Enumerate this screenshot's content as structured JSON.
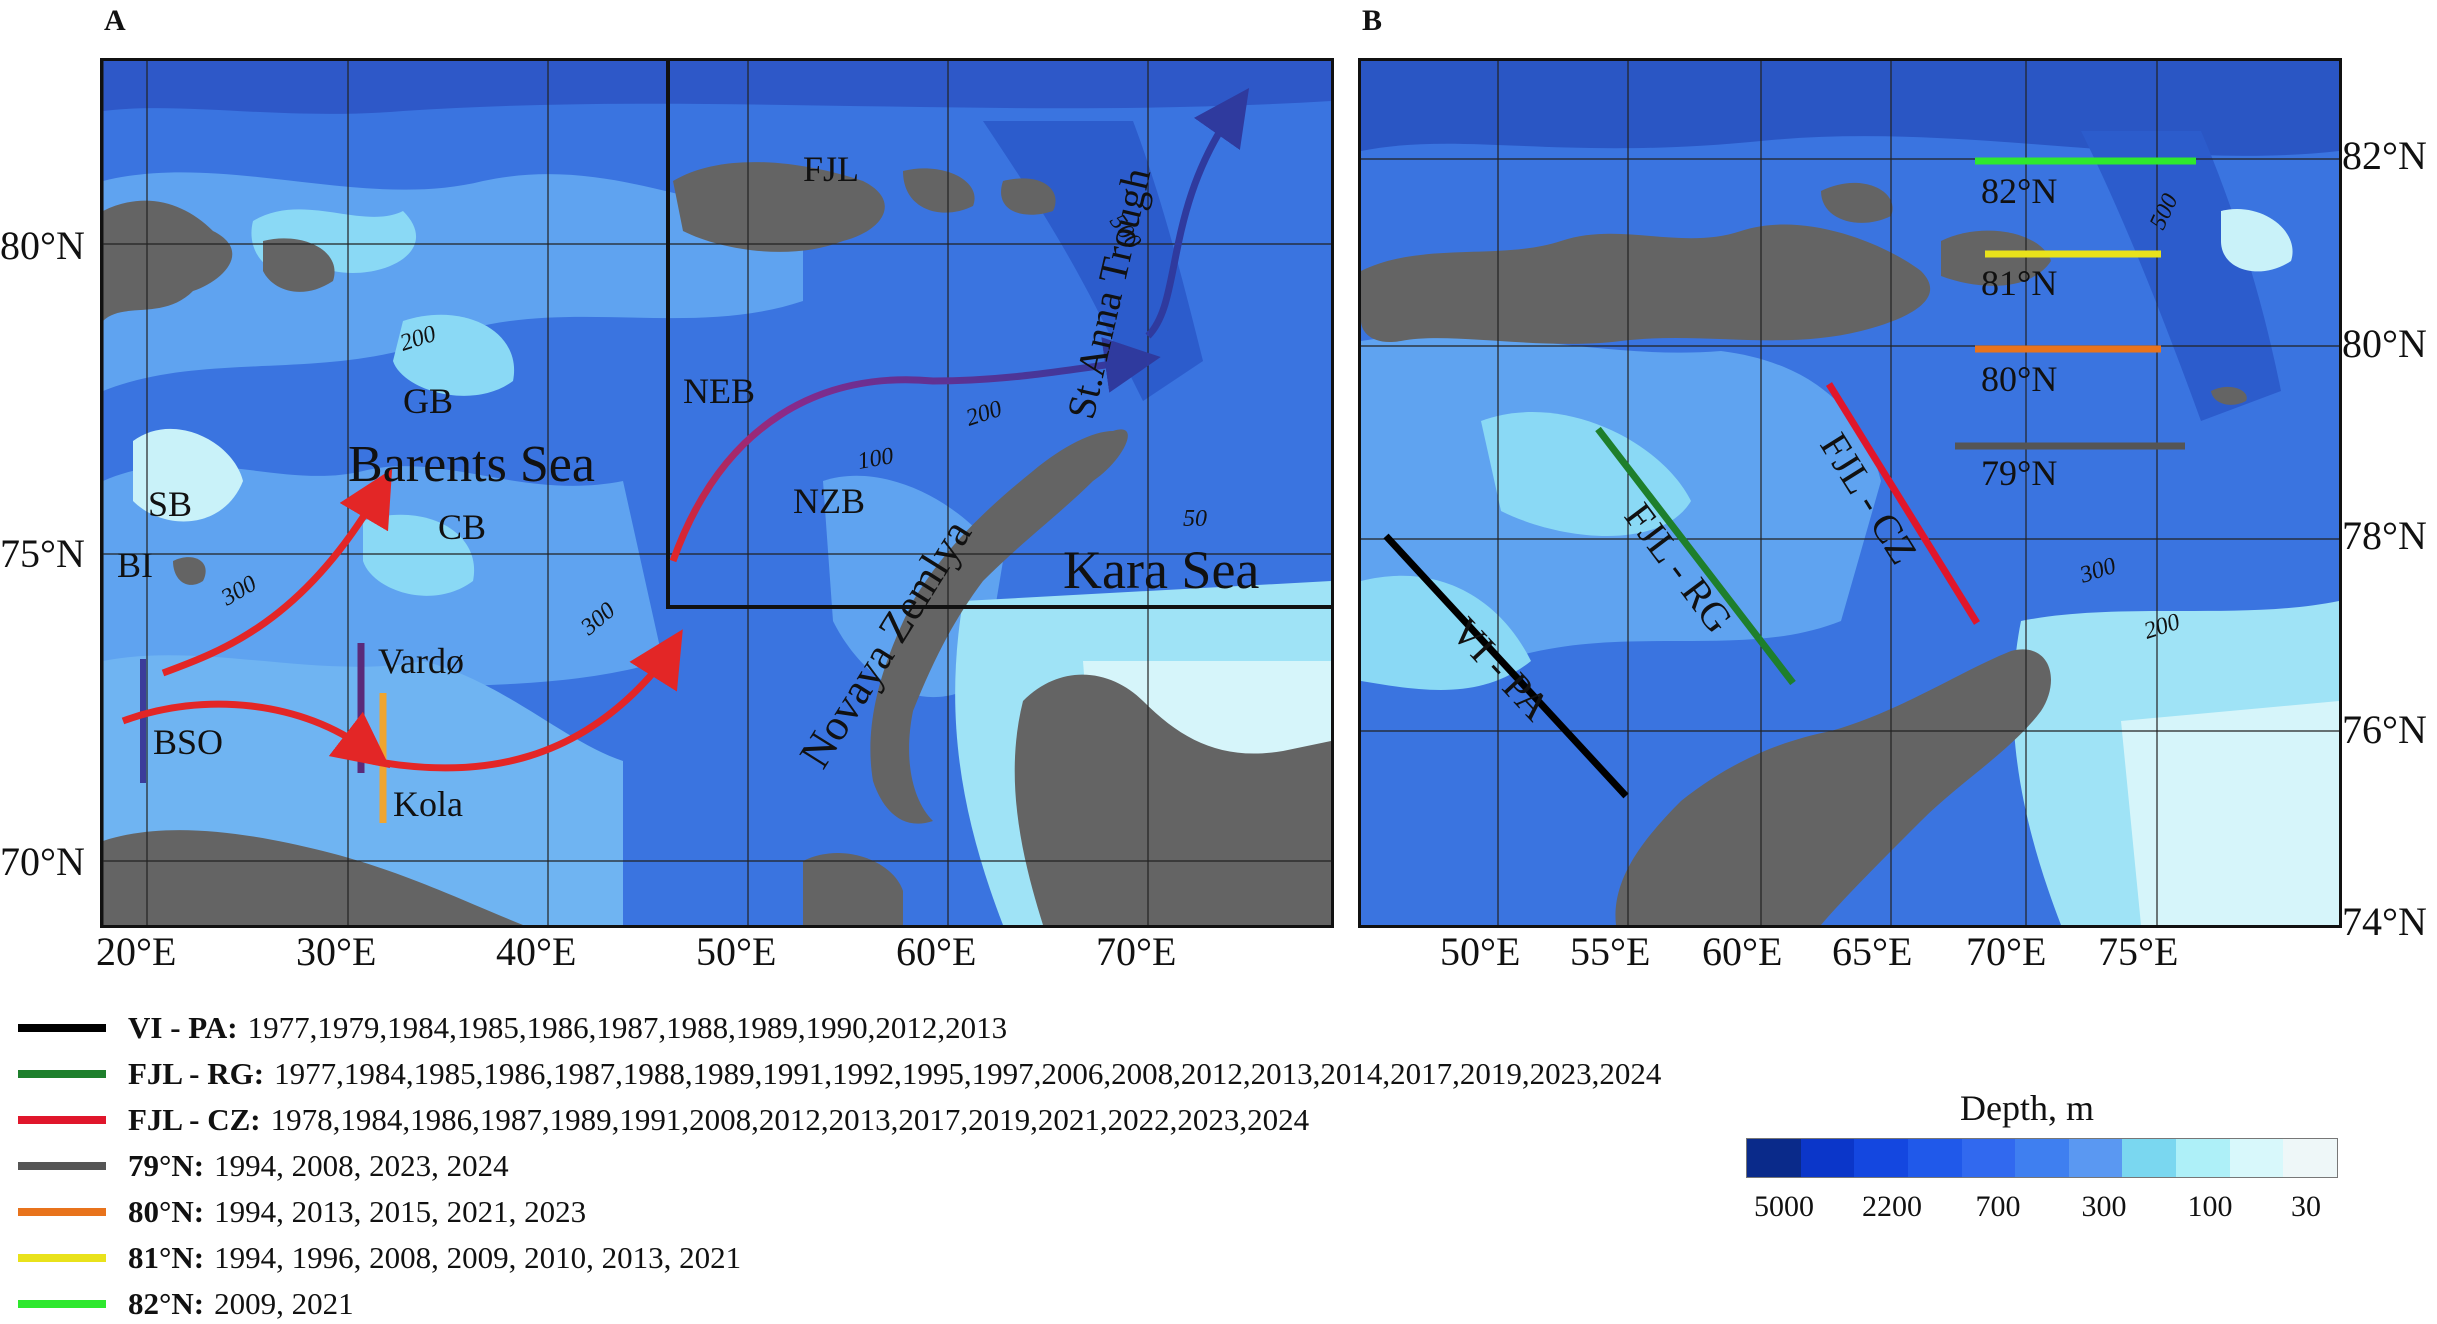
{
  "panel_a": {
    "letter": "A",
    "lat_labels": [
      "80°N",
      "75°N",
      "70°N"
    ],
    "lon_labels": [
      "20°E",
      "30°E",
      "40°E",
      "50°E",
      "60°E",
      "70°E"
    ],
    "place_labels": {
      "barents": "Barents Sea",
      "kara": "Kara Sea",
      "novaya": "Novaya Zemlya",
      "stanna": "St.Anna Trough",
      "fjl": "FJL",
      "neb": "NEB",
      "nzb": "NZB",
      "gb": "GB",
      "cb": "CB",
      "sb": "SB",
      "bi": "BI",
      "bso": "BSO",
      "vardo": "Vardø",
      "kola": "Kola"
    },
    "contour_labels": {
      "c200_west": "200",
      "c300_west": "300",
      "c300_mid": "300",
      "c200_east": "200",
      "c100": "100",
      "c50": "50",
      "c500": "500"
    }
  },
  "panel_b": {
    "letter": "B",
    "lat_labels": [
      "82°N",
      "80°N",
      "78°N",
      "76°N",
      "74°N"
    ],
    "lon_labels": [
      "50°E",
      "55°E",
      "60°E",
      "65°E",
      "70°E",
      "75°E"
    ],
    "section_labels": {
      "vi_pa": "VI - PA",
      "fjl_rg": "FJL - RG",
      "fjl_cz": "FJL - CZ",
      "n82": "82°N",
      "n81": "81°N",
      "n80": "80°N",
      "n79": "79°N"
    },
    "contour_labels": {
      "c500": "500",
      "c300": "300",
      "c200": "200"
    }
  },
  "legend": [
    {
      "name": "VI - PA:",
      "years": "1977,1979,1984,1985,1986,1987,1988,1989,1990,2012,2013",
      "color": "#000000"
    },
    {
      "name": "FJL - RG:",
      "years": "1977,1984,1985,1986,1987,1988,1989,1991,1992,1995,1997,2006,2008,2012,2013,2014,2017,2019,2023,2024",
      "color": "#1e7f2c"
    },
    {
      "name": "FJL - CZ:",
      "years": "1978,1984,1986,1987,1989,1991,2008,2012,2013,2017,2019,2021,2022,2023,2024",
      "color": "#e0162b"
    },
    {
      "name": "79°N:",
      "years": "1994, 2008, 2023, 2024",
      "color": "#555555"
    },
    {
      "name": "80°N:",
      "years": "1994, 2013, 2015, 2021, 2023",
      "color": "#e8731c"
    },
    {
      "name": "81°N:",
      "years": "1994, 1996, 2008, 2009, 2010, 2013, 2021",
      "color": "#e9e21b"
    },
    {
      "name": "82°N:",
      "years": "2009, 2021",
      "color": "#2ee82e"
    }
  ],
  "depth_scale": {
    "title": "Depth, m",
    "ticks": [
      "5000",
      "2200",
      "700",
      "300",
      "100",
      "30"
    ],
    "colors": [
      "#0a2a8a",
      "#0b36c9",
      "#1447e0",
      "#2059ea",
      "#3169ef",
      "#3f7ff0",
      "#5a98f2",
      "#7ad7f0",
      "#aef0f8",
      "#d8f8fb",
      "#eef7f8"
    ]
  },
  "colors": {
    "land": "#646464",
    "deep": "#2e63d8",
    "mid": "#4a86e8",
    "shelf": "#7fd3f2",
    "shallow": "#c8f1f8",
    "atlantic_arrow": "#e32626",
    "neb_arrow_end": "#3a3aa0"
  }
}
